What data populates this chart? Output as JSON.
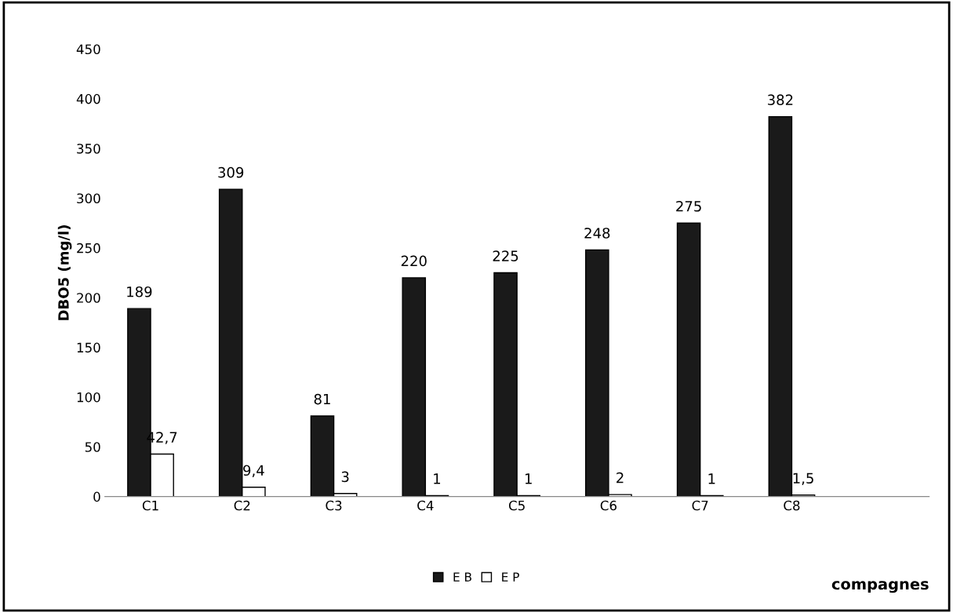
{
  "chart_data": {
    "type": "bar",
    "ylabel": "DBO5 (mg/l)",
    "xlabel": "compagnes",
    "categories": [
      "C1",
      "C2",
      "C3",
      "C4",
      "C5",
      "C6",
      "C7",
      "C8",
      null
    ],
    "series": [
      {
        "name": "E B",
        "color": "#1a1a1a",
        "values": [
          189,
          309,
          81,
          220,
          225,
          248,
          275,
          382,
          null
        ],
        "value_labels": [
          "189",
          "309",
          "81",
          "220",
          "225",
          "248",
          "275",
          "382",
          null
        ]
      },
      {
        "name": "E P",
        "color": "#ffffff",
        "values": [
          42.7,
          9.4,
          3,
          1,
          1,
          2,
          1,
          1.5,
          null
        ],
        "value_labels": [
          "42,7",
          "9,4",
          "3",
          "1",
          "1",
          "2",
          "1",
          "1,5",
          null
        ]
      }
    ],
    "ylim": [
      0,
      450
    ],
    "yticks": [
      0,
      50,
      100,
      150,
      200,
      250,
      300,
      350,
      400,
      450
    ],
    "grid": false,
    "legend": "bottom"
  }
}
